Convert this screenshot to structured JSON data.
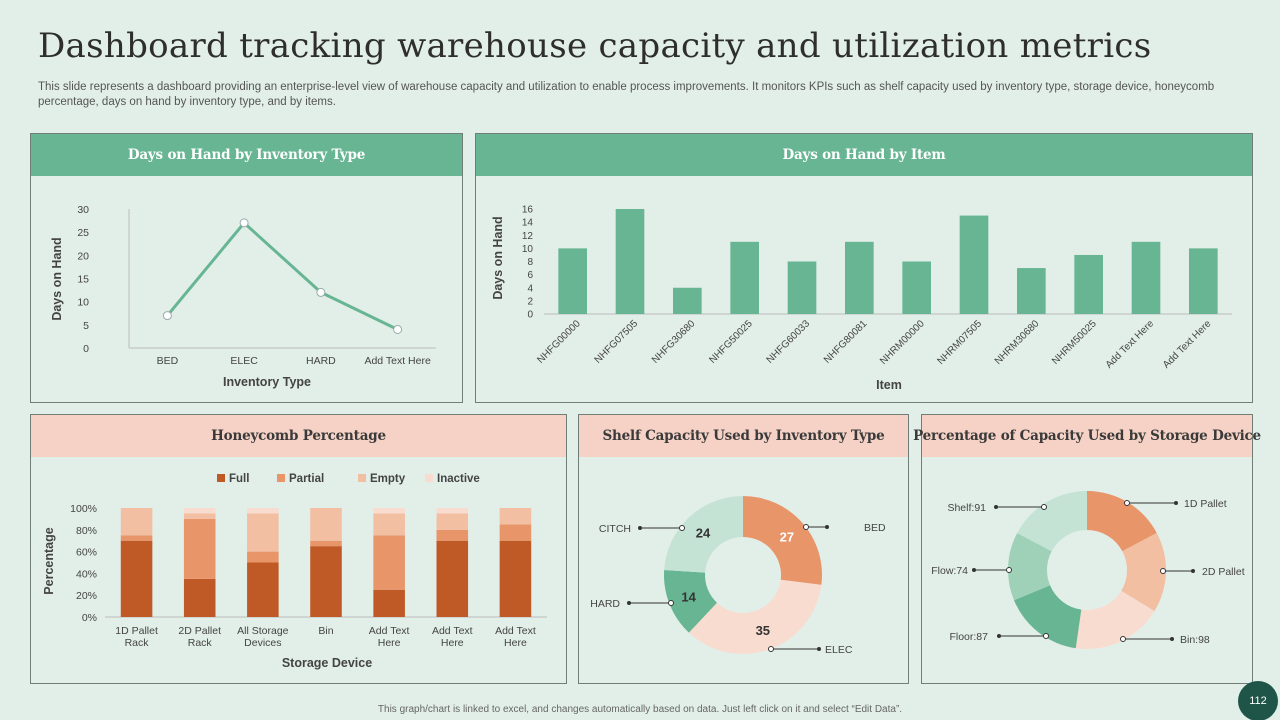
{
  "title": "Dashboard tracking warehouse capacity and utilization metrics",
  "subtitle": "This slide represents a dashboard providing an enterprise-level view of warehouse capacity and utilization to enable process improvements. It monitors KPIs such as shelf capacity used by inventory type, storage device, honeycomb percentage, days on hand by inventory type,  and by items.",
  "footer": "This graph/chart is linked to excel, and changes automatically based on data. Just left click on it and select “Edit Data”.",
  "page_number": "112",
  "colors": {
    "green": "#68b593",
    "light_green": "#9fd1b8",
    "pale_green": "#c5e3d5",
    "dark_orange": "#bf5a27",
    "orange": "#e8956a",
    "light_orange": "#f3bfa3",
    "pale_orange": "#f8dcd0"
  },
  "chart_data": [
    {
      "id": "days_by_type",
      "type": "line",
      "title": "Days on Hand by Inventory Type",
      "categories": [
        "BED",
        "ELEC",
        "HARD",
        "Add Text Here"
      ],
      "values": [
        7,
        27,
        12,
        4
      ],
      "xlabel": "Inventory Type",
      "ylabel": "Days on Hand",
      "ylim": [
        0,
        30
      ],
      "yticks": [
        0,
        5,
        10,
        15,
        20,
        25,
        30
      ]
    },
    {
      "id": "days_by_item",
      "type": "bar",
      "title": "Days on Hand by Item",
      "categories": [
        "NHFG00000",
        "NHFG07505",
        "NHFG30680",
        "NHFG50025",
        "NHFG60033",
        "NHFG80081",
        "NHRM00000",
        "NHRM07505",
        "NHRM30680",
        "NHRM50025",
        "Add Text Here",
        "Add Text Here"
      ],
      "values": [
        10,
        16,
        4,
        11,
        8,
        11,
        8,
        15,
        7,
        9,
        11,
        10
      ],
      "xlabel": "Item",
      "ylabel": "Days on Hand",
      "ylim": [
        0,
        16
      ],
      "yticks": [
        0,
        2,
        4,
        6,
        8,
        10,
        12,
        14,
        16
      ]
    },
    {
      "id": "honeycomb",
      "type": "bar",
      "stacked": true,
      "title": "Honeycomb Percentage",
      "categories": [
        "1D Pallet Rack",
        "2D Pallet Rack",
        "All Storage Devices",
        "Bin",
        "Add Text Here",
        "Add Text Here",
        "Add Text Here"
      ],
      "series": [
        {
          "name": "Full",
          "values": [
            70,
            35,
            50,
            65,
            25,
            70,
            70
          ]
        },
        {
          "name": "Partial",
          "values": [
            5,
            55,
            10,
            5,
            50,
            10,
            15
          ]
        },
        {
          "name": "Empty",
          "values": [
            25,
            5,
            35,
            30,
            20,
            15,
            15
          ]
        },
        {
          "name": "Inactive",
          "values": [
            0,
            5,
            5,
            0,
            5,
            5,
            0
          ]
        }
      ],
      "xlabel": "Storage Device",
      "ylabel": "Percentage",
      "ylim": [
        0,
        100
      ],
      "yticks": [
        "0%",
        "20%",
        "40%",
        "60%",
        "80%",
        "100%"
      ]
    },
    {
      "id": "shelf_capacity",
      "type": "pie",
      "donut": true,
      "title": "Shelf Capacity Used by Inventory Type",
      "labels": [
        "BED",
        "ELEC",
        "HARD",
        "CITCH"
      ],
      "values": [
        27,
        35,
        14,
        24
      ]
    },
    {
      "id": "capacity_by_device",
      "type": "pie",
      "donut": true,
      "title": "Percentage of Capacity Used by Storage Device",
      "labels": [
        "1D Pallet",
        "2D Pallet",
        "Bin:98",
        "Floor:87",
        "Flow:74",
        "Shelf:91"
      ],
      "values": [
        91,
        87,
        98,
        87,
        74,
        91
      ]
    }
  ]
}
